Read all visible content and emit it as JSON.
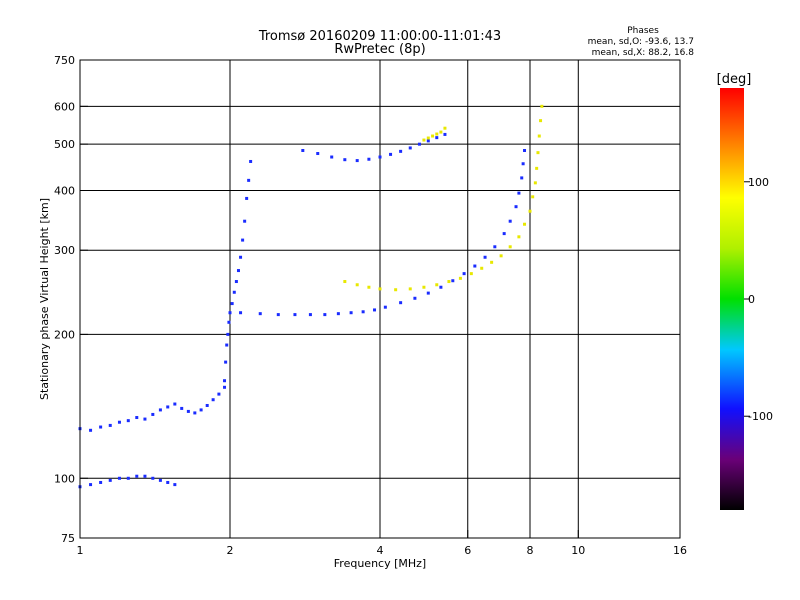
{
  "chart_data": {
    "type": "scatter",
    "title": "Tromsø 20160209 11:00:00-11:01:43",
    "subtitle": "RwPretec (8p)",
    "xlabel": "Frequency [MHz]",
    "ylabel": "Stationary phase Virtual Height [km]",
    "x_scale": "log",
    "y_scale": "log",
    "xlim": [
      1,
      16
    ],
    "ylim": [
      75,
      750
    ],
    "x_ticks": [
      1,
      2,
      4,
      6,
      8,
      10,
      16
    ],
    "y_ticks": [
      75,
      100,
      200,
      300,
      400,
      500,
      600,
      750
    ],
    "grid_x": [
      2,
      4,
      6,
      8,
      10
    ],
    "grid_y": [
      100,
      200,
      300,
      400,
      500,
      600
    ],
    "phases": {
      "heading": "Phases",
      "o_line": "mean, sd,O: -93.6, 13.7",
      "x_line": "mean, sd,X:  88.2, 16.8"
    },
    "colorbar": {
      "label": "[deg]",
      "range": [
        -180,
        180
      ],
      "ticks": [
        {
          "value": 100,
          "label": "100"
        },
        {
          "value": 0,
          "label": "0"
        },
        {
          "value": -100,
          "label": "-100"
        }
      ]
    },
    "series": [
      {
        "phase": -95,
        "points": [
          [
            1.0,
            127
          ],
          [
            1.05,
            126
          ],
          [
            1.1,
            128
          ],
          [
            1.15,
            129
          ],
          [
            1.2,
            131
          ],
          [
            1.25,
            132
          ],
          [
            1.3,
            134
          ],
          [
            1.35,
            133
          ],
          [
            1.4,
            136
          ],
          [
            1.45,
            139
          ],
          [
            1.5,
            141
          ],
          [
            1.55,
            143
          ],
          [
            1.6,
            140
          ],
          [
            1.65,
            138
          ],
          [
            1.7,
            137
          ],
          [
            1.75,
            139
          ],
          [
            1.8,
            142
          ],
          [
            1.85,
            146
          ],
          [
            1.9,
            150
          ],
          [
            1.95,
            155
          ]
        ]
      },
      {
        "phase": -95,
        "points": [
          [
            1.0,
            96
          ],
          [
            1.05,
            97
          ],
          [
            1.1,
            98
          ],
          [
            1.15,
            99
          ],
          [
            1.2,
            100
          ],
          [
            1.25,
            100
          ],
          [
            1.3,
            101
          ],
          [
            1.35,
            101
          ],
          [
            1.4,
            100
          ],
          [
            1.45,
            99
          ],
          [
            1.5,
            98
          ],
          [
            1.55,
            97
          ]
        ]
      },
      {
        "phase": -95,
        "points": [
          [
            1.95,
            160
          ],
          [
            1.96,
            175
          ],
          [
            1.97,
            190
          ],
          [
            1.98,
            200
          ],
          [
            1.99,
            212
          ],
          [
            2.0,
            222
          ],
          [
            2.02,
            232
          ],
          [
            2.04,
            245
          ],
          [
            2.06,
            258
          ],
          [
            2.08,
            272
          ],
          [
            2.1,
            290
          ],
          [
            2.12,
            315
          ],
          [
            2.14,
            345
          ],
          [
            2.16,
            385
          ],
          [
            2.18,
            420
          ],
          [
            2.2,
            460
          ]
        ]
      },
      {
        "phase": -95,
        "points": [
          [
            2.1,
            222
          ],
          [
            2.3,
            221
          ],
          [
            2.5,
            220
          ],
          [
            2.7,
            220
          ],
          [
            2.9,
            220
          ],
          [
            3.1,
            220
          ],
          [
            3.3,
            221
          ],
          [
            3.5,
            222
          ],
          [
            3.7,
            223
          ],
          [
            3.9,
            225
          ],
          [
            4.1,
            228
          ],
          [
            4.4,
            233
          ],
          [
            4.7,
            238
          ],
          [
            5.0,
            244
          ],
          [
            5.3,
            251
          ],
          [
            5.6,
            259
          ],
          [
            5.9,
            268
          ],
          [
            6.2,
            278
          ],
          [
            6.5,
            290
          ],
          [
            6.8,
            305
          ],
          [
            7.1,
            325
          ],
          [
            7.3,
            345
          ],
          [
            7.5,
            370
          ],
          [
            7.6,
            395
          ],
          [
            7.7,
            425
          ],
          [
            7.75,
            455
          ],
          [
            7.8,
            485
          ]
        ]
      },
      {
        "phase": -95,
        "points": [
          [
            2.8,
            485
          ],
          [
            3.0,
            478
          ],
          [
            3.2,
            470
          ],
          [
            3.4,
            464
          ],
          [
            3.6,
            462
          ],
          [
            3.8,
            465
          ],
          [
            4.0,
            470
          ],
          [
            4.2,
            476
          ],
          [
            4.4,
            483
          ],
          [
            4.6,
            491
          ],
          [
            4.8,
            500
          ],
          [
            5.0,
            508
          ],
          [
            5.2,
            516
          ],
          [
            5.4,
            524
          ]
        ]
      },
      {
        "phase": 85,
        "points": [
          [
            3.4,
            258
          ],
          [
            3.6,
            254
          ],
          [
            3.8,
            251
          ],
          [
            4.0,
            249
          ],
          [
            4.3,
            248
          ],
          [
            4.6,
            249
          ],
          [
            4.9,
            251
          ],
          [
            5.2,
            254
          ],
          [
            5.5,
            258
          ],
          [
            5.8,
            262
          ],
          [
            6.1,
            268
          ],
          [
            6.4,
            275
          ],
          [
            6.7,
            283
          ],
          [
            7.0,
            292
          ],
          [
            7.3,
            305
          ],
          [
            7.6,
            320
          ],
          [
            7.8,
            340
          ],
          [
            8.0,
            362
          ],
          [
            8.1,
            388
          ],
          [
            8.2,
            415
          ],
          [
            8.25,
            445
          ],
          [
            8.3,
            480
          ],
          [
            8.35,
            520
          ],
          [
            8.4,
            560
          ],
          [
            8.45,
            600
          ]
        ]
      },
      {
        "phase": 70,
        "points": [
          [
            4.9,
            510
          ],
          [
            5.0,
            515
          ],
          [
            5.1,
            520
          ],
          [
            5.2,
            525
          ],
          [
            5.3,
            530
          ],
          [
            5.4,
            540
          ]
        ]
      }
    ]
  }
}
